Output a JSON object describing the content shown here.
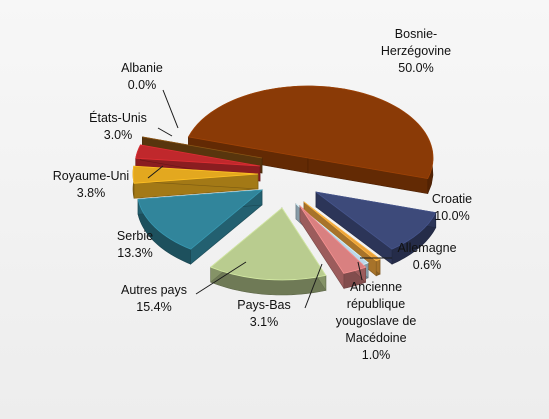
{
  "chart_data": {
    "type": "pie",
    "title": "",
    "categories": [
      "Bosnie-Herzégovine",
      "Croatie",
      "Allemagne",
      "Ancienne république yougoslave de Macédoine",
      "Pays-Bas",
      "Autres pays",
      "Serbie",
      "Royaume-Uni",
      "États-Unis",
      "Albanie"
    ],
    "values": [
      50.0,
      10.0,
      0.6,
      1.0,
      3.1,
      15.4,
      13.3,
      3.8,
      3.0,
      0.0
    ],
    "value_labels": [
      "50.0%",
      "10.0%",
      "0.6%",
      "1.0%",
      "3.1%",
      "15.4%",
      "13.3%",
      "3.8%",
      "3.0%",
      "0.0%"
    ],
    "label_lines": [
      [
        "Bosnie-",
        "Herzégovine"
      ],
      [
        "Croatie"
      ],
      [
        "Allemagne"
      ],
      [
        "Ancienne",
        "république",
        "yougoslave de",
        "Macédoine"
      ],
      [
        "Pays-Bas"
      ],
      [
        "Autres pays"
      ],
      [
        "Serbie"
      ],
      [
        "Royaume-Uni"
      ],
      [
        "États-Unis"
      ],
      [
        "Albanie"
      ]
    ],
    "colors": [
      "#8a3a06",
      "#3d4a7a",
      "#e8a03a",
      "#bcd8ea",
      "#d98080",
      "#b9cc8f",
      "#31859b",
      "#e3a81f",
      "#c0282c",
      "#7a4a12"
    ],
    "exploded": true,
    "style": "3d"
  }
}
